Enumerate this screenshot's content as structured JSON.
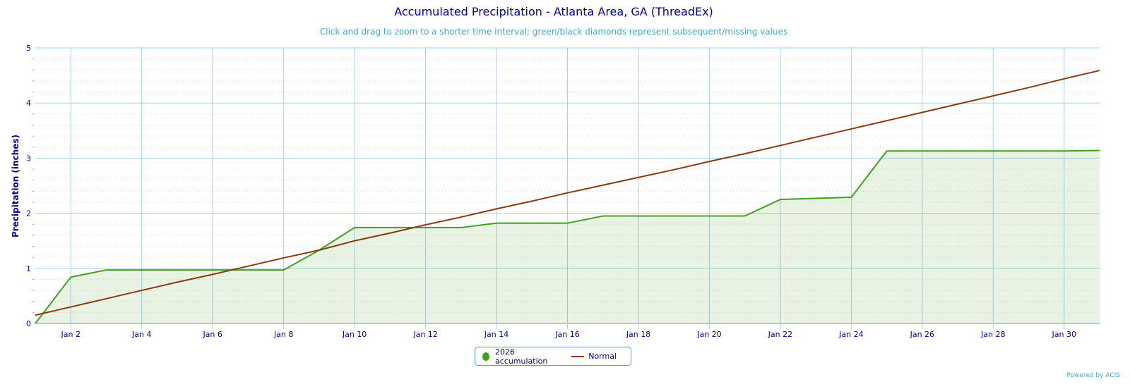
{
  "chart_data": {
    "type": "line",
    "title": "Accumulated Precipitation - Atlanta Area, GA (ThreadEx)",
    "subtitle": "Click and drag to zoom to a shorter time interval; green/black diamonds represent subsequent/missing values",
    "ylabel": "Precipitation (inches)",
    "xlabel": "",
    "ylim": [
      0,
      5
    ],
    "yticks": [
      "0",
      "1",
      "2",
      "3",
      "4",
      "5"
    ],
    "xlim": [
      1,
      31
    ],
    "xtick_days": [
      2,
      4,
      6,
      8,
      10,
      12,
      14,
      16,
      18,
      20,
      22,
      24,
      26,
      28,
      30
    ],
    "xtick_labels": [
      "Jan 2",
      "Jan 4",
      "Jan 6",
      "Jan 8",
      "Jan 10",
      "Jan 12",
      "Jan 14",
      "Jan 16",
      "Jan 18",
      "Jan 20",
      "Jan 22",
      "Jan 24",
      "Jan 26",
      "Jan 28",
      "Jan 30"
    ],
    "x": [
      1,
      2,
      3,
      4,
      5,
      6,
      7,
      8,
      9,
      10,
      11,
      12,
      13,
      14,
      15,
      16,
      17,
      18,
      19,
      20,
      21,
      22,
      23,
      24,
      25,
      26,
      27,
      28,
      29,
      30,
      31
    ],
    "series": [
      {
        "name": "2026 accumulation",
        "color": "#43a01f",
        "type": "area",
        "values": [
          0,
          0.84,
          0.97,
          0.97,
          0.97,
          0.97,
          0.97,
          0.97,
          1.33,
          1.74,
          1.74,
          1.74,
          1.74,
          1.82,
          1.82,
          1.82,
          1.95,
          1.95,
          1.95,
          1.95,
          1.95,
          2.25,
          2.27,
          2.29,
          3.13,
          3.13,
          3.13,
          3.13,
          3.13,
          3.13,
          3.14
        ]
      },
      {
        "name": "Normal",
        "color": "#8b3a10",
        "type": "line",
        "values": [
          0.15,
          0.3,
          0.45,
          0.6,
          0.75,
          0.89,
          1.04,
          1.19,
          1.33,
          1.5,
          1.64,
          1.79,
          1.93,
          2.08,
          2.22,
          2.37,
          2.51,
          2.65,
          2.79,
          2.94,
          3.08,
          3.23,
          3.38,
          3.53,
          3.68,
          3.83,
          3.98,
          4.13,
          4.28,
          4.44,
          4.59
        ]
      }
    ],
    "grid": true,
    "legend_position": "bottom-center"
  },
  "credit": "Powered by ACIS"
}
